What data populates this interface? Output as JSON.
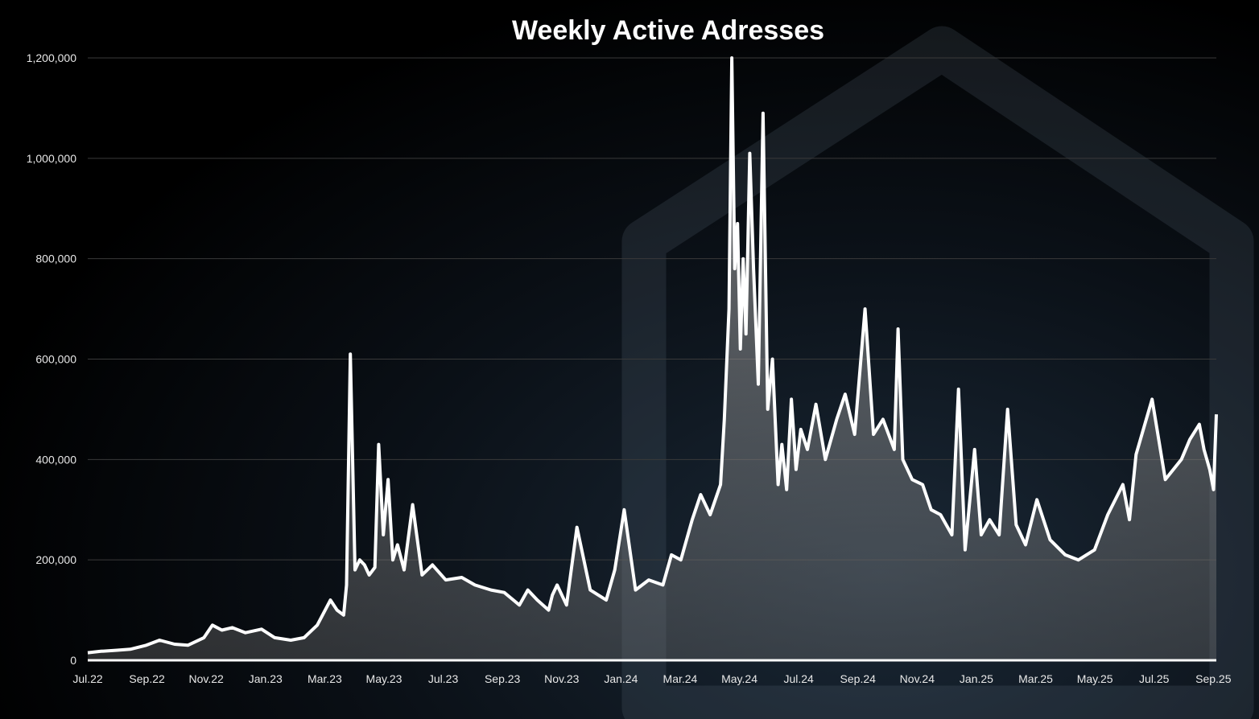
{
  "chart_data": {
    "type": "area",
    "title": "Weekly Active Adresses",
    "xlabel": "",
    "ylabel": "",
    "ylim": [
      0,
      1200000
    ],
    "yticks": [
      0,
      200000,
      400000,
      600000,
      800000,
      1000000,
      1200000
    ],
    "ytick_labels": [
      "0",
      "200,000",
      "400,000",
      "600,000",
      "800,000",
      "1,000,000",
      "1,200,000"
    ],
    "xtick_labels": [
      "Jul.22",
      "Sep.22",
      "Nov.22",
      "Jan.23",
      "Mar.23",
      "May.23",
      "Jul.23",
      "Sep.23",
      "Nov.23",
      "Jan.24",
      "Mar.24",
      "May.24",
      "Jul.24",
      "Sep.24",
      "Nov.24",
      "Jan.25",
      "Mar.25",
      "May.25",
      "Jul.25",
      "Sep.25"
    ],
    "grid": true,
    "series": [
      {
        "color": "#ffffff",
        "x": [
          "2022-07-01",
          "2022-07-15",
          "2022-08-01",
          "2022-08-15",
          "2022-09-01",
          "2022-09-15",
          "2022-10-01",
          "2022-10-15",
          "2022-11-01",
          "2022-11-10",
          "2022-11-20",
          "2022-12-01",
          "2022-12-15",
          "2023-01-01",
          "2023-01-15",
          "2023-02-01",
          "2023-02-15",
          "2023-03-01",
          "2023-03-08",
          "2023-03-15",
          "2023-03-22",
          "2023-03-29",
          "2023-04-01",
          "2023-04-05",
          "2023-04-10",
          "2023-04-15",
          "2023-04-20",
          "2023-04-25",
          "2023-05-01",
          "2023-05-05",
          "2023-05-10",
          "2023-05-15",
          "2023-05-20",
          "2023-05-25",
          "2023-06-01",
          "2023-06-10",
          "2023-06-20",
          "2023-07-01",
          "2023-07-15",
          "2023-08-01",
          "2023-08-15",
          "2023-09-01",
          "2023-09-15",
          "2023-10-01",
          "2023-10-10",
          "2023-10-20",
          "2023-11-01",
          "2023-11-05",
          "2023-11-10",
          "2023-11-20",
          "2023-12-01",
          "2023-12-15",
          "2024-01-01",
          "2024-01-10",
          "2024-01-20",
          "2024-02-01",
          "2024-02-15",
          "2024-03-01",
          "2024-03-10",
          "2024-03-20",
          "2024-04-01",
          "2024-04-10",
          "2024-04-20",
          "2024-05-01",
          "2024-05-05",
          "2024-05-10",
          "2024-05-13",
          "2024-05-16",
          "2024-05-19",
          "2024-05-22",
          "2024-05-25",
          "2024-05-28",
          "2024-06-01",
          "2024-06-05",
          "2024-06-10",
          "2024-06-15",
          "2024-06-20",
          "2024-06-25",
          "2024-07-01",
          "2024-07-05",
          "2024-07-10",
          "2024-07-15",
          "2024-07-20",
          "2024-07-25",
          "2024-08-01",
          "2024-08-10",
          "2024-08-20",
          "2024-09-01",
          "2024-09-10",
          "2024-09-20",
          "2024-10-01",
          "2024-10-10",
          "2024-10-20",
          "2024-11-01",
          "2024-11-05",
          "2024-11-10",
          "2024-11-20",
          "2024-12-01",
          "2024-12-10",
          "2024-12-20",
          "2025-01-01",
          "2025-01-08",
          "2025-01-15",
          "2025-01-25",
          "2025-02-01",
          "2025-02-10",
          "2025-02-20",
          "2025-03-01",
          "2025-03-10",
          "2025-03-20",
          "2025-04-01",
          "2025-04-15",
          "2025-05-01",
          "2025-05-15",
          "2025-06-01",
          "2025-06-15",
          "2025-07-01",
          "2025-07-08",
          "2025-07-15",
          "2025-08-01",
          "2025-08-15",
          "2025-09-01",
          "2025-09-10",
          "2025-09-20",
          "2025-09-25",
          "2025-10-01",
          "2025-10-05",
          "2025-10-08"
        ],
        "y": [
          15000,
          18000,
          20000,
          22000,
          30000,
          40000,
          32000,
          30000,
          45000,
          70000,
          60000,
          65000,
          55000,
          62000,
          45000,
          40000,
          45000,
          70000,
          95000,
          120000,
          100000,
          90000,
          150000,
          610000,
          180000,
          200000,
          190000,
          170000,
          185000,
          430000,
          250000,
          360000,
          200000,
          230000,
          180000,
          310000,
          170000,
          190000,
          160000,
          165000,
          150000,
          140000,
          135000,
          110000,
          140000,
          120000,
          100000,
          130000,
          150000,
          110000,
          265000,
          140000,
          120000,
          180000,
          300000,
          140000,
          160000,
          150000,
          210000,
          200000,
          280000,
          330000,
          290000,
          350000,
          480000,
          700000,
          1200000,
          780000,
          870000,
          620000,
          800000,
          650000,
          1010000,
          780000,
          550000,
          1090000,
          500000,
          600000,
          350000,
          430000,
          340000,
          520000,
          380000,
          460000,
          420000,
          510000,
          400000,
          480000,
          530000,
          450000,
          700000,
          450000,
          480000,
          420000,
          660000,
          400000,
          360000,
          350000,
          300000,
          290000,
          250000,
          540000,
          220000,
          420000,
          250000,
          280000,
          250000,
          500000,
          270000,
          230000,
          320000,
          240000,
          210000,
          200000,
          220000,
          290000,
          350000,
          280000,
          410000,
          520000,
          360000,
          400000,
          440000,
          470000,
          420000,
          380000,
          340000,
          490000
        ]
      }
    ]
  }
}
